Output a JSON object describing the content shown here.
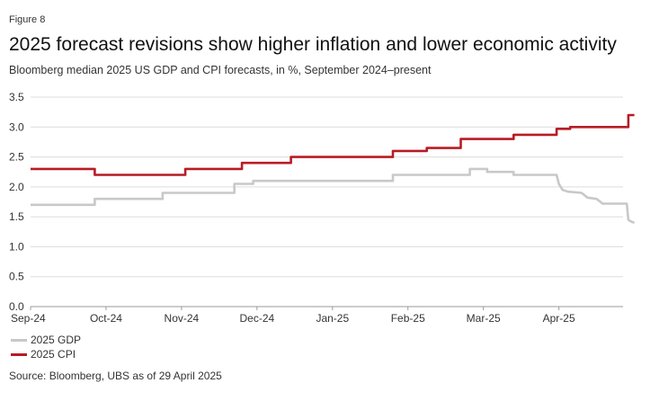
{
  "figure_label": "Figure 8",
  "source": "Source: Bloomberg, UBS as of 29 April 2025",
  "chart_data": {
    "type": "line",
    "title": "2025 forecast revisions show higher inflation and lower economic activity",
    "subtitle": "Bloomberg median 2025 US GDP and CPI forecasts, in %, September 2024–present",
    "xlabel": "",
    "ylabel": "",
    "ylim": [
      0,
      3.5
    ],
    "yticks": [
      "0.0",
      "0.5",
      "1.0",
      "1.5",
      "2.0",
      "2.5",
      "3.0",
      "3.5"
    ],
    "xlim": [
      0,
      7.85
    ],
    "xticks": [
      "Sep-24",
      "Oct-24",
      "Nov-24",
      "Dec-24",
      "Jan-25",
      "Feb-25",
      "Mar-25",
      "Apr-25"
    ],
    "grid": "horizontal",
    "legend_position": "bottom-left",
    "series": [
      {
        "name": "2025 GDP",
        "color": "#c8c8c8",
        "points": [
          [
            0.0,
            1.7
          ],
          [
            0.85,
            1.7
          ],
          [
            0.85,
            1.8
          ],
          [
            1.75,
            1.8
          ],
          [
            1.75,
            1.9
          ],
          [
            2.7,
            1.9
          ],
          [
            2.7,
            2.05
          ],
          [
            2.95,
            2.05
          ],
          [
            2.95,
            2.1
          ],
          [
            4.8,
            2.1
          ],
          [
            4.8,
            2.2
          ],
          [
            5.82,
            2.2
          ],
          [
            5.82,
            2.3
          ],
          [
            6.05,
            2.3
          ],
          [
            6.05,
            2.25
          ],
          [
            6.4,
            2.25
          ],
          [
            6.4,
            2.2
          ],
          [
            6.97,
            2.2
          ],
          [
            7.0,
            2.05
          ],
          [
            7.05,
            1.95
          ],
          [
            7.12,
            1.92
          ],
          [
            7.3,
            1.9
          ],
          [
            7.35,
            1.85
          ],
          [
            7.38,
            1.82
          ],
          [
            7.5,
            1.8
          ],
          [
            7.55,
            1.75
          ],
          [
            7.58,
            1.72
          ],
          [
            7.9,
            1.72
          ],
          [
            7.92,
            1.45
          ],
          [
            7.96,
            1.42
          ],
          [
            8.0,
            1.4
          ]
        ]
      },
      {
        "name": "2025 CPI",
        "color": "#b71c25",
        "points": [
          [
            0.0,
            2.3
          ],
          [
            0.85,
            2.3
          ],
          [
            0.85,
            2.2
          ],
          [
            2.05,
            2.2
          ],
          [
            2.05,
            2.3
          ],
          [
            2.8,
            2.3
          ],
          [
            2.8,
            2.4
          ],
          [
            3.45,
            2.4
          ],
          [
            3.45,
            2.5
          ],
          [
            4.8,
            2.5
          ],
          [
            4.8,
            2.6
          ],
          [
            5.25,
            2.6
          ],
          [
            5.25,
            2.65
          ],
          [
            5.7,
            2.65
          ],
          [
            5.7,
            2.8
          ],
          [
            6.4,
            2.8
          ],
          [
            6.4,
            2.87
          ],
          [
            6.97,
            2.87
          ],
          [
            6.97,
            2.97
          ],
          [
            7.15,
            2.97
          ],
          [
            7.15,
            3.0
          ],
          [
            7.92,
            3.0
          ],
          [
            7.92,
            3.2
          ],
          [
            8.0,
            3.2
          ]
        ]
      }
    ]
  }
}
